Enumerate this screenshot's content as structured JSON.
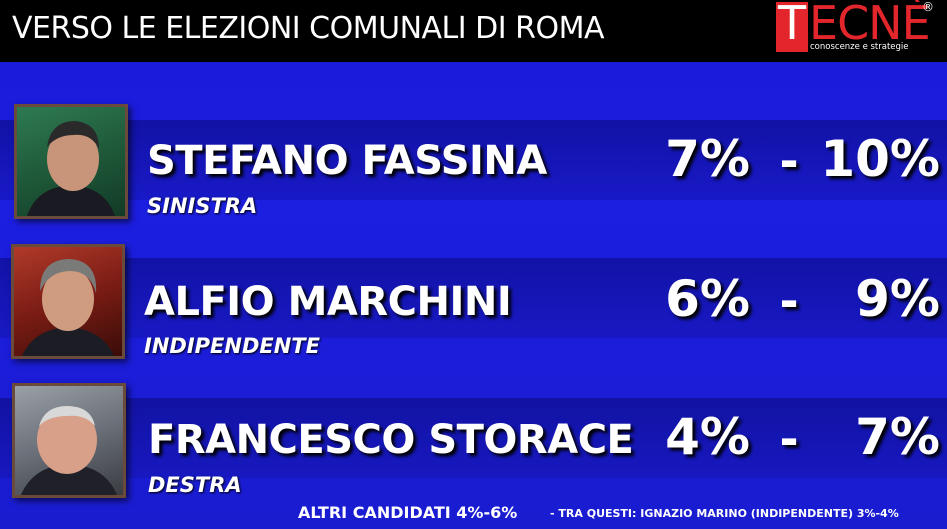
{
  "header": {
    "title": "VERSO LE ELEZIONI COMUNALI DI ROMA",
    "logo": {
      "letter_t": "T",
      "rest": "ECNÈ",
      "registered": "®",
      "tagline": "conoscenze e strategie",
      "brand_color": "#e3262b"
    }
  },
  "candidates": [
    {
      "name": "STEFANO FASSINA",
      "party": "SINISTRA",
      "low": "7%",
      "separator": "-",
      "high": "10%"
    },
    {
      "name": "ALFIO MARCHINI",
      "party": "INDIPENDENTE",
      "low": "6%",
      "separator": "-",
      "high": "9%"
    },
    {
      "name": "FRANCESCO STORACE",
      "party": "DESTRA",
      "low": "4%",
      "separator": "-",
      "high": "7%"
    }
  ],
  "footer": {
    "main": "ALTRI CANDIDATI 4%-6%",
    "note": "- TRA QUESTI: IGNAZIO MARINO (INDIPENDENTE) 3%-4%"
  },
  "colors": {
    "background": "#1c1ee0",
    "topbar": "#000000",
    "text": "#ffffff"
  }
}
